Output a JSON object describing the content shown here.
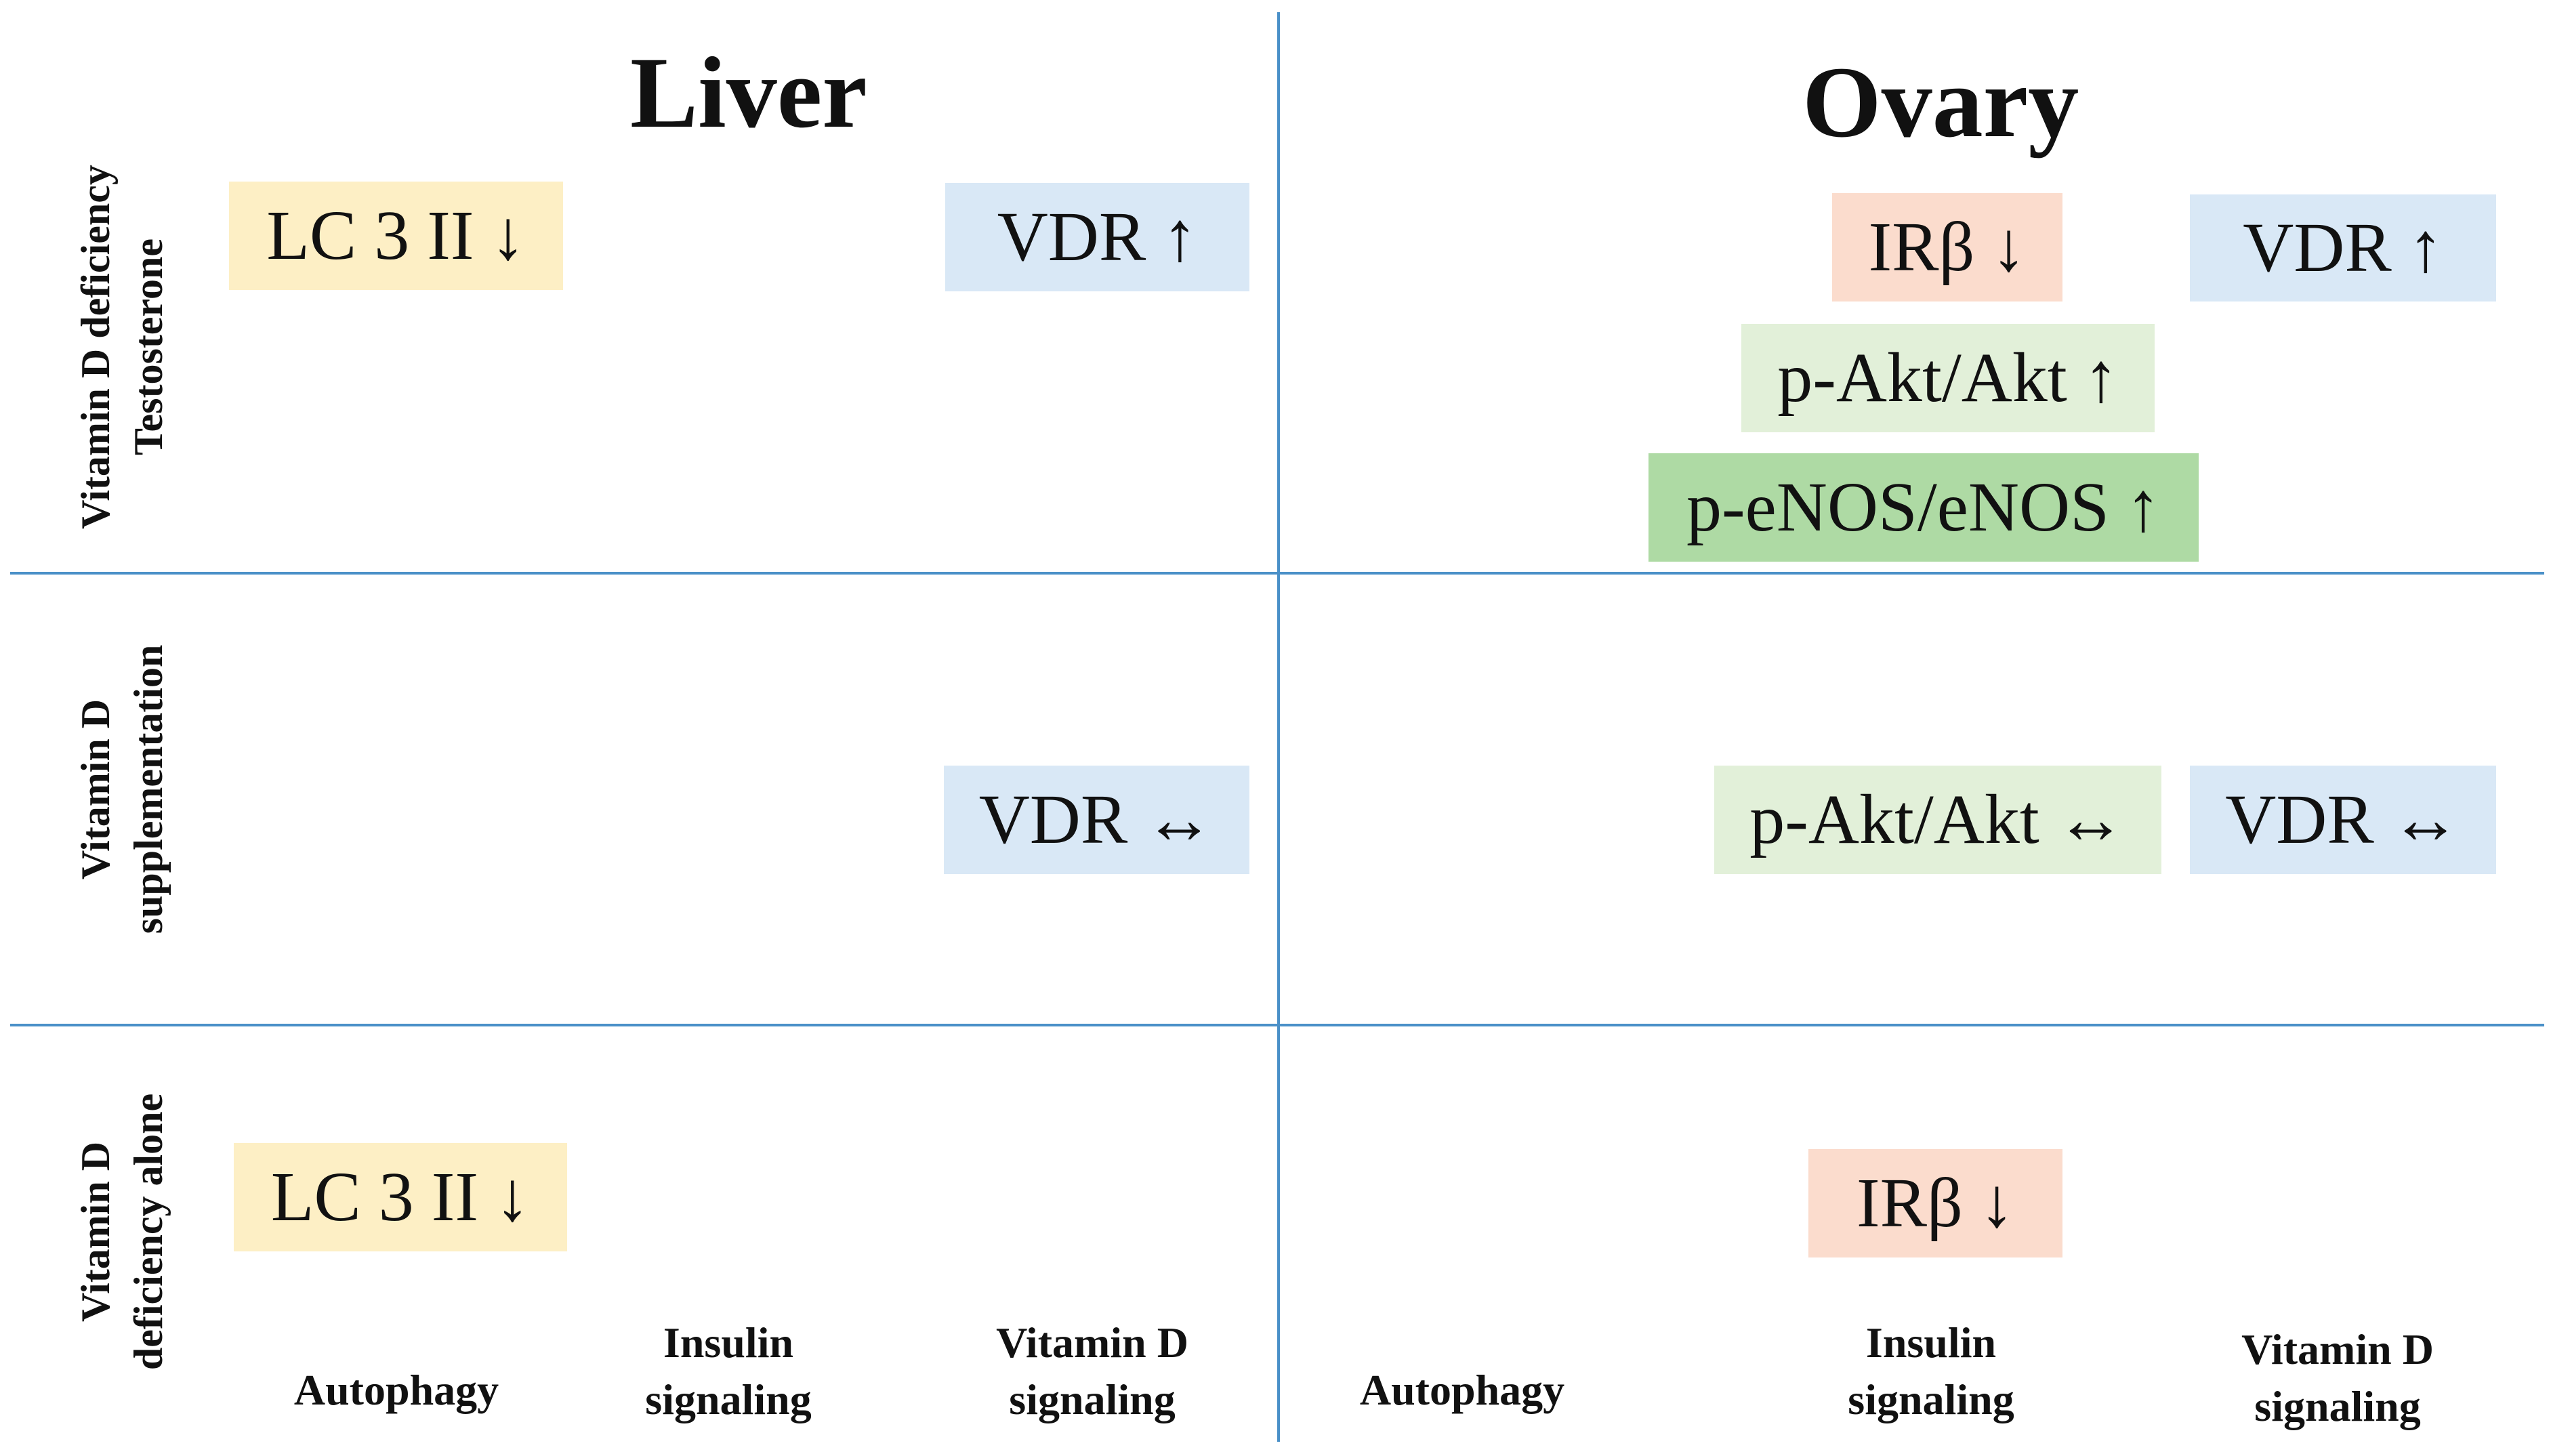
{
  "organs": {
    "liver": "Liver",
    "ovary": "Ovary"
  },
  "rows": [
    {
      "lines": [
        "Vitamin D deficiency",
        "Testosterone"
      ]
    },
    {
      "lines": [
        "Vitamin D",
        "supplementation"
      ]
    },
    {
      "lines": [
        "Vitamin D",
        "deficiency alone"
      ]
    }
  ],
  "columns": {
    "liver": [
      {
        "lines": [
          "Autophagy"
        ]
      },
      {
        "lines": [
          "Insulin",
          "signaling"
        ]
      },
      {
        "lines": [
          "Vitamin D",
          "signaling"
        ]
      }
    ],
    "ovary": [
      {
        "lines": [
          "Autophagy"
        ]
      },
      {
        "lines": [
          "Insulin",
          "signaling"
        ]
      },
      {
        "lines": [
          "Vitamin D",
          "signaling"
        ]
      }
    ]
  },
  "markers": {
    "row1": {
      "liver_lc3": {
        "label": "LC 3 II",
        "arrow": "↓",
        "color": "#fdefc5"
      },
      "liver_vdr": {
        "label": "VDR",
        "arrow": "↑",
        "color": "#d9e8f6"
      },
      "ovary_irb": {
        "label": "IRβ",
        "arrow": "↓",
        "color": "#fbdccd"
      },
      "ovary_vdr": {
        "label": "VDR",
        "arrow": "↑",
        "color": "#d9e8f6"
      },
      "ovary_akt": {
        "label": "p-Akt/Akt",
        "arrow": "↑",
        "color": "#e2f0d9"
      },
      "ovary_enos": {
        "label": "p-eNOS/eNOS",
        "arrow": "↑",
        "color": "#aedaa4"
      }
    },
    "row2": {
      "liver_vdr": {
        "label": "VDR",
        "arrow": "↔",
        "color": "#d9e8f6"
      },
      "ovary_akt": {
        "label": "p-Akt/Akt",
        "arrow": "↔",
        "color": "#e2f0d9"
      },
      "ovary_vdr": {
        "label": "VDR",
        "arrow": "↔",
        "color": "#d9e8f6"
      }
    },
    "row3": {
      "liver_lc3": {
        "label": "LC 3 II",
        "arrow": "↓",
        "color": "#fdefc5"
      },
      "ovary_irb": {
        "label": "IRβ",
        "arrow": "↓",
        "color": "#fbdccd"
      }
    }
  },
  "divider_color": "#4a90c8"
}
